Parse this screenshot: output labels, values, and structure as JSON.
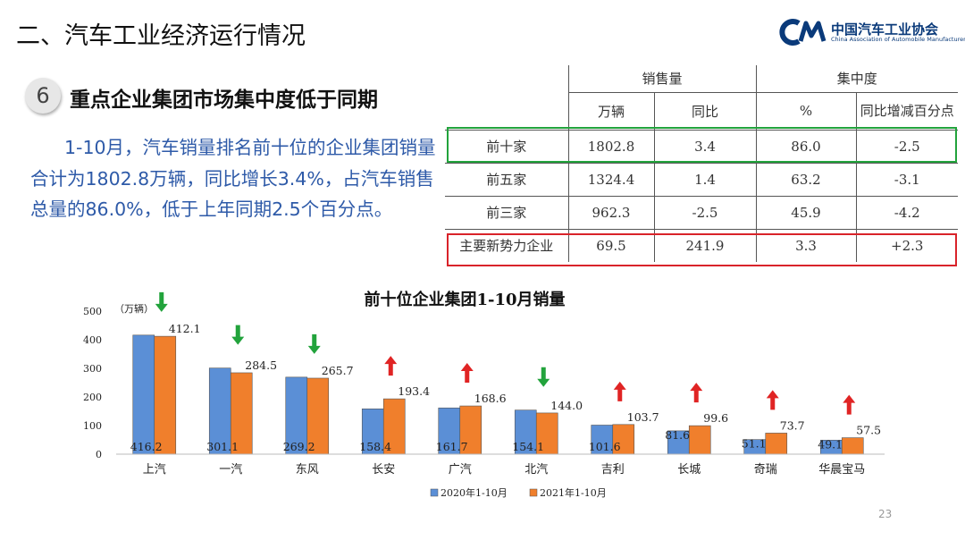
{
  "header": {
    "title": "二、汽车工业经济运行情况",
    "logo_cn": "中国汽车工业协会",
    "logo_en": "China Association of Automobile Manufacturers"
  },
  "section": {
    "number": "6",
    "heading": "重点企业集团市场集中度低于同期",
    "paragraph": "1-10月，汽车销量排名前十位的企业集团销量合计为1802.8万辆，同比增长3.4%，占汽车销售总量的86.0%，低于上年同期2.5个百分点。"
  },
  "table": {
    "group_headers": [
      "销售量",
      "集中度"
    ],
    "sub_headers": [
      "万辆",
      "同比",
      "%",
      "同比增减百分点"
    ],
    "rows": [
      {
        "label": "前十家",
        "values": [
          "1802.8",
          "3.4",
          "86.0",
          "-2.5"
        ],
        "highlight": "green"
      },
      {
        "label": "前五家",
        "values": [
          "1324.4",
          "1.4",
          "63.2",
          "-3.1"
        ],
        "highlight": ""
      },
      {
        "label": "前三家",
        "values": [
          "962.3",
          "-2.5",
          "45.9",
          "-4.2"
        ],
        "highlight": ""
      },
      {
        "label": "主要新势力企业",
        "values": [
          "69.5",
          "241.9",
          "3.3",
          "+2.3"
        ],
        "highlight": "red"
      }
    ]
  },
  "chart_data": {
    "type": "bar",
    "title": "前十位企业集团1-10月销量",
    "unit_label": "（万辆）",
    "ylim": [
      0,
      500
    ],
    "yticks": [
      0,
      100,
      200,
      300,
      400,
      500
    ],
    "categories": [
      "上汽",
      "一汽",
      "东风",
      "长安",
      "广汽",
      "北汽",
      "吉利",
      "长城",
      "奇瑞",
      "华晨宝马"
    ],
    "series": [
      {
        "name": "2020年1-10月",
        "color": "#5b8fd6",
        "values": [
          416.2,
          301.1,
          269.2,
          158.4,
          161.7,
          154.1,
          101.6,
          81.6,
          51.1,
          49.1
        ]
      },
      {
        "name": "2021年1-10月",
        "color": "#f07f2c",
        "values": [
          412.1,
          284.5,
          265.7,
          193.4,
          168.6,
          144.0,
          103.7,
          99.6,
          73.7,
          57.5
        ]
      }
    ],
    "trend_arrows": [
      "down",
      "down",
      "down",
      "up",
      "up",
      "down",
      "up",
      "up",
      "up",
      "up"
    ],
    "legend": "bottom",
    "grid": false
  },
  "colors": {
    "up_arrow": "#e02424",
    "down_arrow": "#22a33c",
    "accent_text": "#2e5aa8"
  },
  "page_number": "23"
}
